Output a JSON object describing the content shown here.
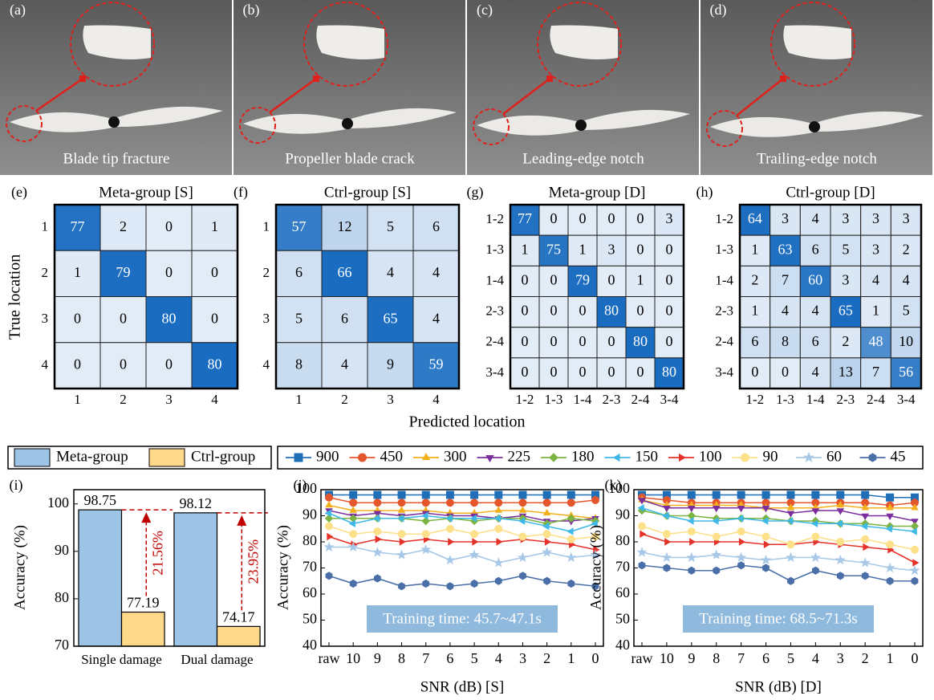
{
  "photos": [
    {
      "label": "(a)",
      "caption": "Blade tip fracture"
    },
    {
      "label": "(b)",
      "caption": "Propeller blade crack"
    },
    {
      "label": "(c)",
      "caption": "Leading-edge notch"
    },
    {
      "label": "(d)",
      "caption": "Trailing-edge notch"
    }
  ],
  "true_label": "True location",
  "predicted_label": "Predicted location",
  "chart_data": [
    {
      "type": "heatmap",
      "panel": "(e)",
      "title": "Meta-group [S]",
      "categories": [
        "1",
        "2",
        "3",
        "4"
      ],
      "values": [
        [
          77,
          2,
          0,
          1
        ],
        [
          1,
          79,
          0,
          0
        ],
        [
          0,
          0,
          80,
          0
        ],
        [
          0,
          0,
          0,
          80
        ]
      ],
      "colors": [
        "#e2ecf7",
        "#1a6cc0"
      ]
    },
    {
      "type": "heatmap",
      "panel": "(f)",
      "title": "Ctrl-group [S]",
      "categories": [
        "1",
        "2",
        "3",
        "4"
      ],
      "values": [
        [
          57,
          12,
          5,
          6
        ],
        [
          6,
          66,
          4,
          4
        ],
        [
          5,
          6,
          65,
          4
        ],
        [
          8,
          4,
          9,
          59
        ]
      ],
      "colors": [
        "#e2ecf7",
        "#1a6cc0"
      ]
    },
    {
      "type": "heatmap",
      "panel": "(g)",
      "title": "Meta-group [D]",
      "categories": [
        "1-2",
        "1-3",
        "1-4",
        "2-3",
        "2-4",
        "3-4"
      ],
      "values": [
        [
          77,
          0,
          0,
          0,
          0,
          3
        ],
        [
          1,
          75,
          1,
          3,
          0,
          0
        ],
        [
          0,
          0,
          79,
          0,
          1,
          0
        ],
        [
          0,
          0,
          0,
          80,
          0,
          0
        ],
        [
          0,
          0,
          0,
          0,
          80,
          0
        ],
        [
          0,
          0,
          0,
          0,
          0,
          80
        ]
      ],
      "colors": [
        "#e2ecf7",
        "#1a6cc0"
      ]
    },
    {
      "type": "heatmap",
      "panel": "(h)",
      "title": "Ctrl-group [D]",
      "categories": [
        "1-2",
        "1-3",
        "1-4",
        "2-3",
        "2-4",
        "3-4"
      ],
      "values": [
        [
          64,
          3,
          4,
          3,
          3,
          3
        ],
        [
          1,
          63,
          6,
          5,
          3,
          2
        ],
        [
          2,
          7,
          60,
          3,
          4,
          4
        ],
        [
          1,
          4,
          4,
          65,
          1,
          5
        ],
        [
          6,
          8,
          6,
          2,
          48,
          10
        ],
        [
          0,
          0,
          4,
          13,
          7,
          56
        ]
      ],
      "colors": [
        "#e2ecf7",
        "#1a6cc0"
      ]
    },
    {
      "type": "bar",
      "panel": "(i)",
      "categories": [
        "Single damage",
        "Dual damage"
      ],
      "series": [
        {
          "name": "Meta-group",
          "color": "#9dc3e6",
          "values": [
            98.75,
            98.12
          ]
        },
        {
          "name": "Ctrl-group",
          "color": "#ffd98a",
          "values": [
            77.19,
            74.17
          ]
        }
      ],
      "ylim": [
        70,
        103
      ],
      "yticks": [
        70,
        80,
        90,
        100
      ],
      "ylabel": "Accuracy (%)",
      "annotations": [
        "21.56%",
        "23.95%"
      ],
      "annotation_color": "#c00000"
    },
    {
      "type": "line",
      "panel": "(j)",
      "categories": [
        "raw",
        "10",
        "9",
        "8",
        "7",
        "6",
        "5",
        "4",
        "3",
        "2",
        "1",
        "0"
      ],
      "ylim": [
        40,
        100
      ],
      "yticks": [
        40,
        50,
        60,
        70,
        80,
        90,
        100
      ],
      "ylabel": "Accuracy (%)",
      "xlabel": "SNR (dB)  [S]",
      "annotation": "Training time: 45.7~47.1s",
      "series": [
        {
          "name": "900",
          "color": "#1f6fb8",
          "marker": "square",
          "values": [
            98,
            98,
            98,
            98,
            98,
            98,
            98,
            98,
            98,
            98,
            98,
            98
          ]
        },
        {
          "name": "450",
          "color": "#e4572e",
          "marker": "circle",
          "values": [
            97,
            95,
            95,
            95,
            95,
            95,
            95,
            95,
            95,
            95,
            95,
            96
          ]
        },
        {
          "name": "300",
          "color": "#f2b01e",
          "marker": "triangle-up",
          "values": [
            94,
            92,
            92,
            92,
            92,
            91,
            91,
            92,
            92,
            91,
            90,
            89
          ]
        },
        {
          "name": "225",
          "color": "#7b2f9e",
          "marker": "triangle-down",
          "values": [
            92,
            90,
            91,
            90,
            91,
            90,
            90,
            89,
            90,
            88,
            88,
            89
          ]
        },
        {
          "name": "180",
          "color": "#7cb342",
          "marker": "diamond",
          "values": [
            89,
            89,
            89,
            89,
            88,
            89,
            88,
            89,
            89,
            87,
            89,
            88
          ]
        },
        {
          "name": "150",
          "color": "#3fb8e8",
          "marker": "triangle-left",
          "values": [
            91,
            87,
            89,
            89,
            90,
            89,
            89,
            89,
            88,
            86,
            84,
            87
          ]
        },
        {
          "name": "100",
          "color": "#e5332a",
          "marker": "triangle-right",
          "values": [
            82,
            79,
            81,
            80,
            81,
            80,
            80,
            80,
            81,
            80,
            79,
            77
          ]
        },
        {
          "name": "90",
          "color": "#fde08a",
          "marker": "circle",
          "values": [
            86,
            83,
            84,
            83,
            83,
            85,
            83,
            85,
            82,
            83,
            81,
            82
          ]
        },
        {
          "name": "60",
          "color": "#a8c8e8",
          "marker": "star",
          "values": [
            78,
            78,
            76,
            75,
            77,
            73,
            75,
            72,
            74,
            76,
            74,
            75
          ]
        },
        {
          "name": "45",
          "color": "#4a6fa8",
          "marker": "hexagon",
          "values": [
            67,
            64,
            66,
            63,
            64,
            63,
            64,
            65,
            67,
            65,
            64,
            63
          ]
        }
      ]
    },
    {
      "type": "line",
      "panel": "(k)",
      "categories": [
        "raw",
        "10",
        "9",
        "8",
        "7",
        "6",
        "5",
        "4",
        "3",
        "2",
        "1",
        "0"
      ],
      "ylim": [
        40,
        100
      ],
      "yticks": [
        40,
        50,
        60,
        70,
        80,
        90,
        100
      ],
      "ylabel": "Accuracy (%)",
      "xlabel": "SNR (dB)  [D]",
      "annotation": "Training time: 68.5~71.3s",
      "series": [
        {
          "name": "900",
          "color": "#1f6fb8",
          "marker": "square",
          "values": [
            98,
            98,
            98,
            98,
            98,
            98,
            98,
            98,
            98,
            98,
            97,
            97
          ]
        },
        {
          "name": "450",
          "color": "#e4572e",
          "marker": "circle",
          "values": [
            97,
            96,
            95,
            95,
            95,
            95,
            95,
            95,
            95,
            95,
            94,
            95
          ]
        },
        {
          "name": "300",
          "color": "#f2b01e",
          "marker": "triangle-up",
          "values": [
            96,
            94,
            94,
            94,
            94,
            93,
            93,
            93,
            94,
            93,
            93,
            93
          ]
        },
        {
          "name": "225",
          "color": "#7b2f9e",
          "marker": "triangle-down",
          "values": [
            96,
            93,
            93,
            93,
            93,
            93,
            91,
            92,
            92,
            90,
            90,
            88
          ]
        },
        {
          "name": "180",
          "color": "#7cb342",
          "marker": "diamond",
          "values": [
            92,
            90,
            90,
            89,
            89,
            89,
            88,
            88,
            87,
            87,
            86,
            86
          ]
        },
        {
          "name": "150",
          "color": "#3fb8e8",
          "marker": "triangle-left",
          "values": [
            93,
            90,
            88,
            88,
            89,
            88,
            88,
            87,
            87,
            86,
            85,
            84
          ]
        },
        {
          "name": "100",
          "color": "#e5332a",
          "marker": "triangle-right",
          "values": [
            83,
            80,
            80,
            80,
            80,
            79,
            79,
            80,
            79,
            78,
            77,
            72
          ]
        },
        {
          "name": "90",
          "color": "#fde08a",
          "marker": "circle",
          "values": [
            86,
            83,
            84,
            82,
            84,
            82,
            79,
            82,
            80,
            81,
            79,
            77
          ]
        },
        {
          "name": "60",
          "color": "#a8c8e8",
          "marker": "star",
          "values": [
            76,
            74,
            74,
            75,
            74,
            73,
            74,
            74,
            73,
            72,
            70,
            69
          ]
        },
        {
          "name": "45",
          "color": "#4a6fa8",
          "marker": "hexagon",
          "values": [
            71,
            70,
            69,
            69,
            71,
            70,
            65,
            69,
            67,
            67,
            65,
            65
          ]
        }
      ]
    }
  ]
}
